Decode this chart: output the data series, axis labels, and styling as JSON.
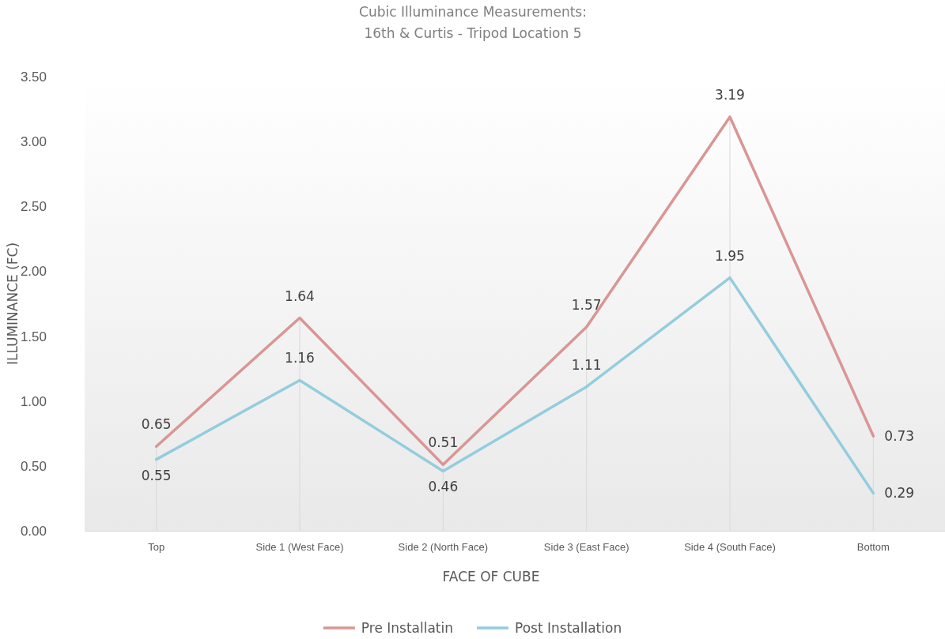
{
  "chart_data": {
    "type": "line",
    "title": "Cubic Illuminance Measurements:\n16th & Curtis - Tripod Location 5",
    "xlabel": "FACE OF CUBE",
    "ylabel": "ILLUMINANCE (FC)",
    "categories": [
      "Top",
      "Side 1 (West Face)",
      "Side 2 (North Face)",
      "Side 3 (East Face)",
      "Side 4 (South Face)",
      "Bottom"
    ],
    "series": [
      {
        "name": "Pre Installatin",
        "color": "#d99694",
        "values": [
          0.65,
          1.64,
          0.51,
          1.57,
          3.19,
          0.73
        ]
      },
      {
        "name": "Post Installation",
        "color": "#93cddd",
        "values": [
          0.55,
          1.16,
          0.46,
          1.11,
          1.95,
          0.29
        ]
      }
    ],
    "ylim": [
      0,
      3.5
    ],
    "yticks": [
      {
        "value": 0,
        "label": "0.00"
      },
      {
        "value": 0.5,
        "label": "0.50"
      },
      {
        "value": 1,
        "label": "1.00"
      },
      {
        "value": 1.5,
        "label": "1.50"
      },
      {
        "value": 2,
        "label": "2.00"
      },
      {
        "value": 2.5,
        "label": "2.50"
      },
      {
        "value": 3,
        "label": "3.00"
      },
      {
        "value": 3.5,
        "label": "3.50"
      }
    ],
    "grid": "x",
    "legend": "bottom",
    "marker": "none",
    "line_style": "solid",
    "data_labels": true
  }
}
